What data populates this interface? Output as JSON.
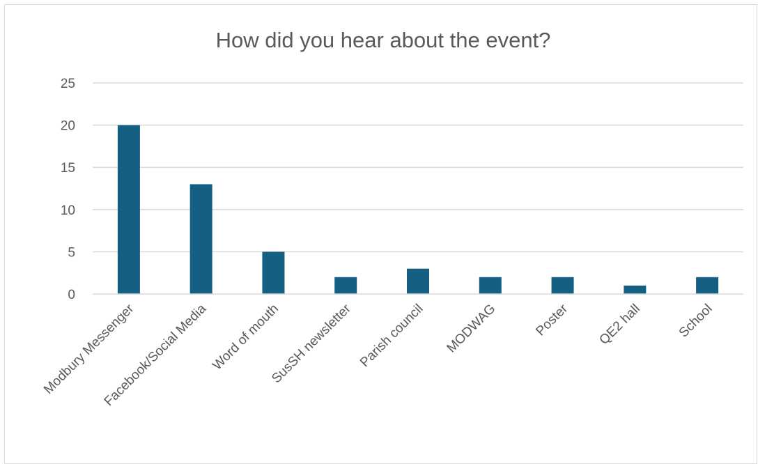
{
  "chart_data": {
    "type": "bar",
    "title": "How did you hear about the event?",
    "categories": [
      "Modbury Messenger",
      "Facebook/Social Media",
      "Word of mouth",
      "SusSH newsletter",
      "Parish council",
      "MODWAG",
      "Poster",
      "QE2 hall",
      "School"
    ],
    "values": [
      20,
      13,
      5,
      2,
      3,
      2,
      2,
      1,
      2
    ],
    "ylim": [
      0,
      25
    ],
    "yticks": [
      0,
      5,
      10,
      15,
      20,
      25
    ],
    "grid": true,
    "legend": "none",
    "bar_color": "#156082",
    "grid_color": "#d9d9d9",
    "text_color": "#595959"
  }
}
